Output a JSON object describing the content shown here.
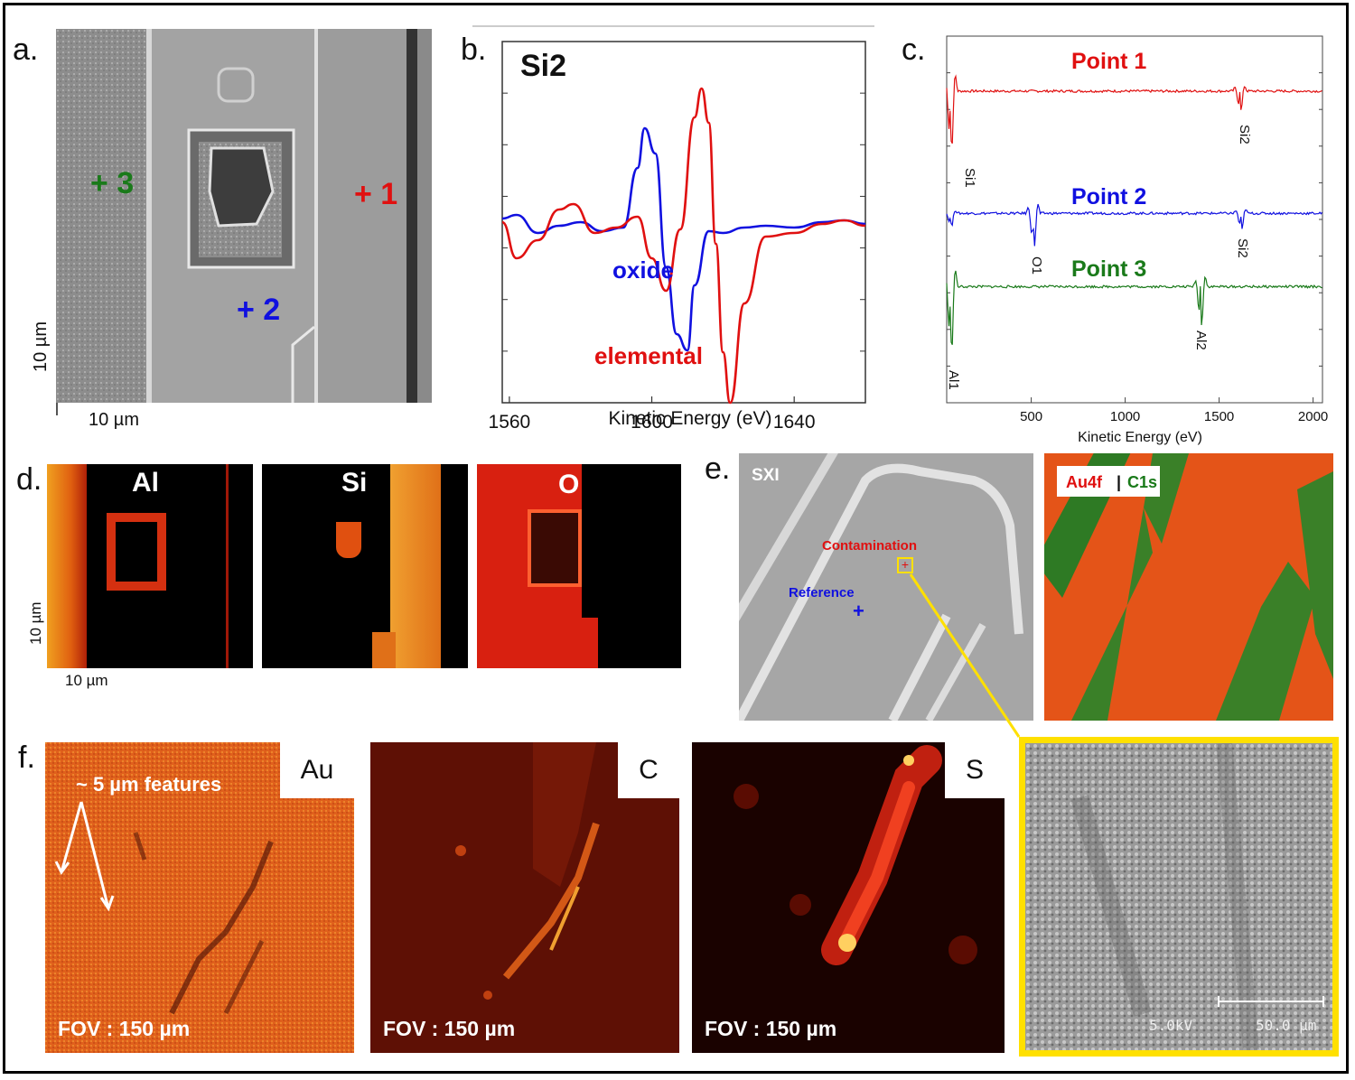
{
  "panel_a": {
    "label": "a.",
    "markers": [
      {
        "text": "+ 3",
        "color": "#1a7a1a"
      },
      {
        "text": "+ 1",
        "color": "#e01010"
      },
      {
        "text": "+ 2",
        "color": "#1010e0"
      }
    ],
    "scale_v": "10 µm",
    "scale_h": "10 µm"
  },
  "panel_b": {
    "label": "b.",
    "title": "Si2",
    "curve_labels": {
      "oxide": "oxide",
      "elemental": "elemental"
    }
  },
  "panel_c": {
    "label": "c.",
    "series_labels": [
      "Point 1",
      "Point 2",
      "Point 3"
    ],
    "peak_labels": {
      "si1": "Si1",
      "si2a": "Si2",
      "o1": "O1",
      "si2b": "Si2",
      "al2": "Al2",
      "al1": "Al1"
    }
  },
  "panel_d": {
    "label": "d.",
    "maps": [
      "Al",
      "Si",
      "O"
    ],
    "scale_v": "10 µm",
    "scale_h": "10 µm"
  },
  "panel_e": {
    "label": "e.",
    "sxi": "SXI",
    "contamination": "Contamination",
    "reference": "Reference",
    "reference_marker": "+",
    "legend_au": "Au4f",
    "legend_sep": "|",
    "legend_c": "C1s"
  },
  "panel_f": {
    "label": "f.",
    "maps": [
      "Au",
      "C",
      "S"
    ],
    "fov": "FOV  : 150 µm",
    "features": "~ 5 µm features",
    "sem_kv": "5.0kV",
    "sem_scale": "50.0  µm"
  },
  "chart_data": [
    {
      "type": "line",
      "title": "Si2",
      "xlabel": "Kinetic Energy (eV)",
      "ylabel": "",
      "xlim": [
        1558,
        1660
      ],
      "ylim": [
        -1.0,
        1.0
      ],
      "xticks": [
        1560,
        1600,
        1640
      ],
      "grid": false,
      "series": [
        {
          "name": "oxide",
          "color": "#1010e0",
          "x": [
            1558,
            1562,
            1568,
            1574,
            1580,
            1586,
            1592,
            1596,
            1598,
            1601,
            1604,
            1607,
            1610,
            1612,
            1616,
            1620,
            1626,
            1632,
            1640,
            1648,
            1654,
            1660
          ],
          "y": [
            0.02,
            0.04,
            -0.06,
            -0.02,
            0.0,
            -0.05,
            -0.03,
            0.3,
            0.52,
            0.38,
            -0.25,
            -0.62,
            -0.71,
            -0.35,
            -0.05,
            -0.06,
            -0.03,
            -0.02,
            -0.03,
            0.0,
            0.01,
            -0.01
          ]
        },
        {
          "name": "elemental",
          "color": "#e01010",
          "x": [
            1558,
            1562,
            1568,
            1574,
            1578,
            1584,
            1590,
            1596,
            1600,
            1604,
            1608,
            1612,
            1614,
            1616,
            1618,
            1620,
            1622,
            1626,
            1632,
            1640,
            1648,
            1654,
            1660
          ],
          "y": [
            0.0,
            -0.2,
            -0.1,
            0.07,
            0.1,
            -0.06,
            -0.03,
            0.03,
            -0.2,
            -0.38,
            -0.04,
            0.58,
            0.74,
            0.55,
            -0.12,
            -0.72,
            -1.0,
            -0.45,
            -0.08,
            -0.06,
            -0.01,
            0.01,
            -0.02
          ]
        }
      ]
    },
    {
      "type": "line",
      "title": "",
      "xlabel": "Kinetic Energy (eV)",
      "ylabel": "",
      "xlim": [
        50,
        2050
      ],
      "ylim": [
        0,
        3
      ],
      "xticks": [
        500,
        1000,
        1500,
        2000
      ],
      "grid": false,
      "series": [
        {
          "name": "Point 1",
          "color": "#e01010",
          "offset": 2.55,
          "peaks": [
            {
              "x": 70,
              "amp": 0.55
            },
            {
              "x": 1610,
              "amp": 0.18
            }
          ]
        },
        {
          "name": "Point 2",
          "color": "#1010e0",
          "offset": 1.55,
          "peaks": [
            {
              "x": 70,
              "amp": 0.12
            },
            {
              "x": 510,
              "amp": 0.3
            },
            {
              "x": 1615,
              "amp": 0.15
            }
          ]
        },
        {
          "name": "Point 3",
          "color": "#1a7a1a",
          "offset": 0.95,
          "peaks": [
            {
              "x": 70,
              "amp": 0.6
            },
            {
              "x": 1400,
              "amp": 0.35
            }
          ]
        }
      ]
    }
  ]
}
